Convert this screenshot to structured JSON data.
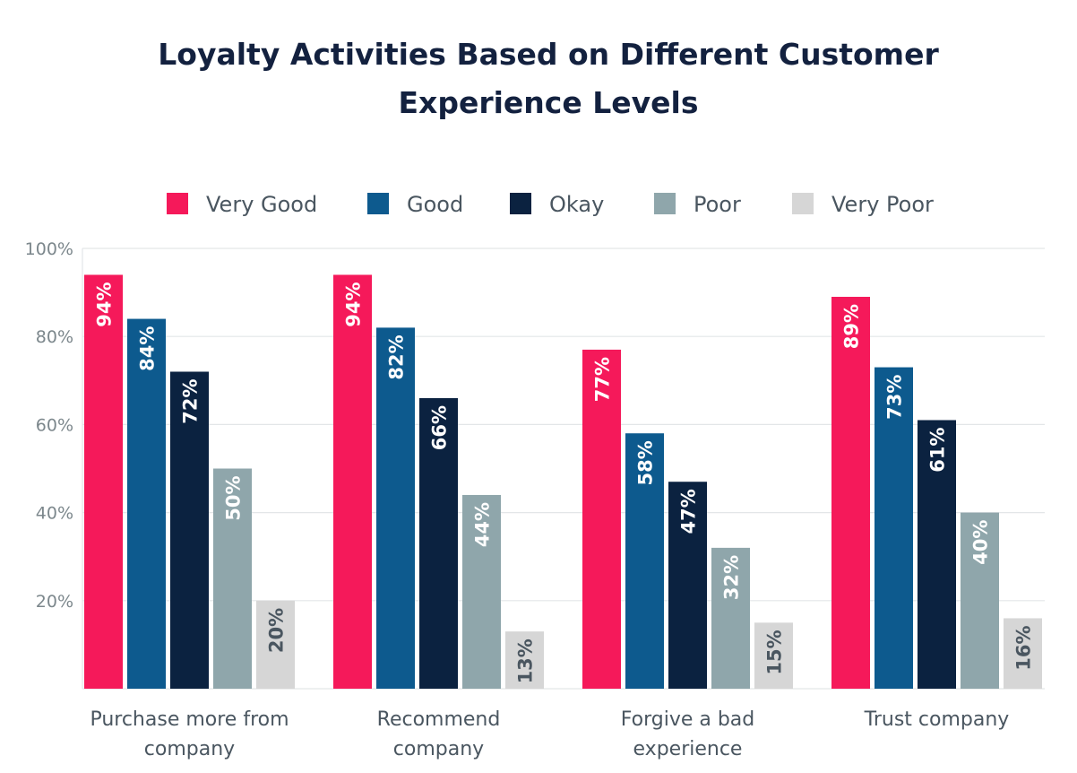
{
  "chart_data": {
    "type": "bar",
    "title_lines": [
      "Loyalty Activities Based on Different Customer",
      "Experience Levels"
    ],
    "categories": [
      [
        "Purchase more from",
        "company"
      ],
      [
        "Recommend",
        "company"
      ],
      [
        "Forgive a bad",
        "experience"
      ],
      [
        "Trust company"
      ]
    ],
    "series": [
      {
        "name": "Very Good",
        "color": "#f5195a",
        "label_color": "#ffffff",
        "values": [
          94,
          94,
          77,
          89
        ]
      },
      {
        "name": "Good",
        "color": "#0d5a8e",
        "label_color": "#ffffff",
        "values": [
          84,
          82,
          58,
          73
        ]
      },
      {
        "name": "Okay",
        "color": "#0b2240",
        "label_color": "#ffffff",
        "values": [
          72,
          66,
          47,
          61
        ]
      },
      {
        "name": "Poor",
        "color": "#8fa6ab",
        "label_color": "#ffffff",
        "values": [
          50,
          44,
          32,
          40
        ]
      },
      {
        "name": "Very Poor",
        "color": "#d6d6d6",
        "label_color": "#4a5660",
        "values": [
          20,
          13,
          15,
          16
        ]
      }
    ],
    "yticks": [
      "20%",
      "40%",
      "60%",
      "80%",
      "100%"
    ],
    "ytick_values": [
      20,
      40,
      60,
      80,
      100
    ],
    "ylim": [
      0,
      100
    ],
    "value_suffix": "%",
    "grid": true,
    "legend_placement": "top"
  }
}
